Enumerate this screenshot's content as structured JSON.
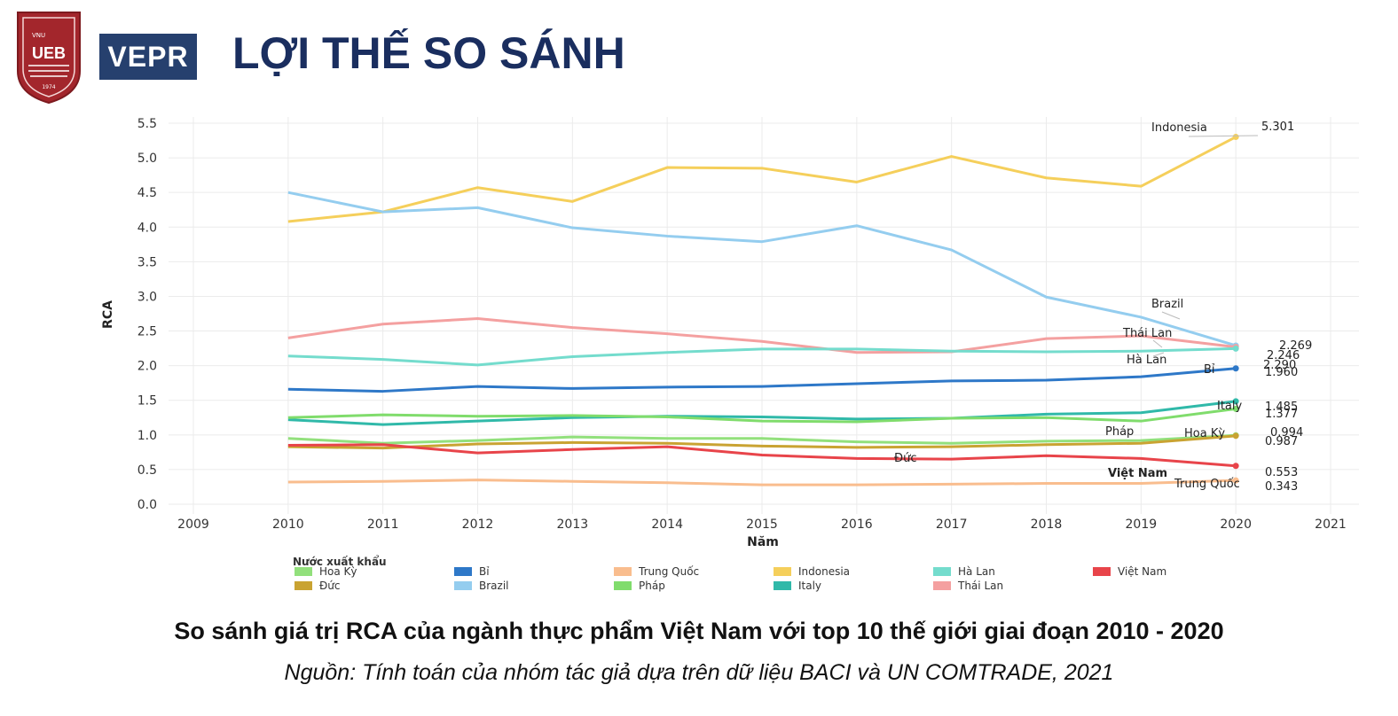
{
  "header": {
    "ueb_logo_text": "UEB",
    "ueb_logo_vnu": "VNU",
    "ueb_logo_year": "1974",
    "vepr_logo_text": "VEPR",
    "title": "LỢI THẾ SO SÁNH"
  },
  "caption": "So sánh giá trị RCA của ngành thực phẩm Việt Nam với top 10 thế giới giai đoạn 2010 - 2020",
  "source": "Nguồn: Tính toán của nhóm tác giả dựa trên dữ liệu BACI và UN COMTRADE, 2021",
  "chart_data": {
    "type": "line",
    "xlabel": "Năm",
    "ylabel": "RCA",
    "xlim": [
      2009,
      2021
    ],
    "ylim": [
      0,
      5.5
    ],
    "x_ticks": [
      2009,
      2010,
      2011,
      2012,
      2013,
      2014,
      2015,
      2016,
      2017,
      2018,
      2019,
      2020,
      2021
    ],
    "y_ticks": [
      "0.0",
      "0.5",
      "1.0",
      "1.5",
      "2.0",
      "2.5",
      "3.0",
      "3.5",
      "4.0",
      "4.5",
      "5.0",
      "5.5"
    ],
    "grid": true,
    "legend_title": "Nước xuất khẩu",
    "legend_position": "bottom",
    "x": [
      2010,
      2011,
      2012,
      2013,
      2014,
      2015,
      2016,
      2017,
      2018,
      2019,
      2020
    ],
    "series": [
      {
        "name": "Indonesia",
        "color": "#f5cf5b",
        "values": [
          4.08,
          4.22,
          4.57,
          4.37,
          4.86,
          4.85,
          4.65,
          5.02,
          4.71,
          4.59,
          5.301
        ],
        "end_label": "5.301",
        "line_label": "Indonesia"
      },
      {
        "name": "Brazil",
        "color": "#94cdef",
        "values": [
          4.5,
          4.22,
          4.28,
          3.99,
          3.87,
          3.79,
          4.02,
          3.67,
          2.99,
          2.7,
          2.29
        ],
        "end_label": "2.290",
        "line_label": "Brazil"
      },
      {
        "name": "Thái Lan",
        "color": "#f4a0a0",
        "values": [
          2.4,
          2.6,
          2.68,
          2.55,
          2.46,
          2.35,
          2.19,
          2.2,
          2.39,
          2.43,
          2.269
        ],
        "end_label": "2.269",
        "line_label": "Thái Lan"
      },
      {
        "name": "Hà Lan",
        "color": "#74dccd",
        "values": [
          2.14,
          2.09,
          2.01,
          2.13,
          2.19,
          2.24,
          2.24,
          2.21,
          2.2,
          2.21,
          2.246
        ],
        "end_label": "2.246",
        "line_label": "Hà Lan"
      },
      {
        "name": "Bỉ",
        "color": "#2e78c8",
        "values": [
          1.66,
          1.63,
          1.7,
          1.67,
          1.69,
          1.7,
          1.74,
          1.78,
          1.79,
          1.84,
          1.96
        ],
        "end_label": "1.960",
        "line_label": "Bỉ"
      },
      {
        "name": "Italy",
        "color": "#30b9a9",
        "values": [
          1.22,
          1.15,
          1.2,
          1.25,
          1.27,
          1.26,
          1.23,
          1.24,
          1.3,
          1.32,
          1.485
        ],
        "end_label": "1.485",
        "line_label": "Italy"
      },
      {
        "name": "Pháp",
        "color": "#80dc6c",
        "values": [
          1.25,
          1.29,
          1.27,
          1.28,
          1.26,
          1.2,
          1.19,
          1.24,
          1.25,
          1.2,
          1.377
        ],
        "end_label": "1.377",
        "line_label": "Pháp"
      },
      {
        "name": "Hoa Kỳ",
        "color": "#92e07c",
        "values": [
          0.95,
          0.88,
          0.92,
          0.97,
          0.95,
          0.95,
          0.9,
          0.88,
          0.91,
          0.92,
          0.994
        ],
        "end_label": "0.994",
        "line_label": "Hoa Kỳ"
      },
      {
        "name": "Đức",
        "color": "#c9a332",
        "values": [
          0.83,
          0.81,
          0.87,
          0.89,
          0.88,
          0.84,
          0.82,
          0.83,
          0.86,
          0.88,
          0.987
        ],
        "end_label": "0.987",
        "line_label": "Đức"
      },
      {
        "name": "Việt Nam",
        "color": "#e8444a",
        "values": [
          0.85,
          0.86,
          0.74,
          0.79,
          0.83,
          0.71,
          0.66,
          0.65,
          0.7,
          0.66,
          0.553
        ],
        "end_label": "0.553",
        "line_label": "Việt Nam"
      },
      {
        "name": "Trung Quốc",
        "color": "#f9bd8e",
        "values": [
          0.32,
          0.33,
          0.35,
          0.33,
          0.31,
          0.28,
          0.28,
          0.29,
          0.3,
          0.3,
          0.343
        ],
        "end_label": "0.343",
        "line_label": "Trung Quốc"
      }
    ],
    "legend_order": [
      "Hoa Kỳ",
      "Đức",
      "Bỉ",
      "Brazil",
      "Trung Quốc",
      "Pháp",
      "Indonesia",
      "Italy",
      "Hà Lan",
      "Thái Lan",
      "Việt Nam"
    ]
  }
}
